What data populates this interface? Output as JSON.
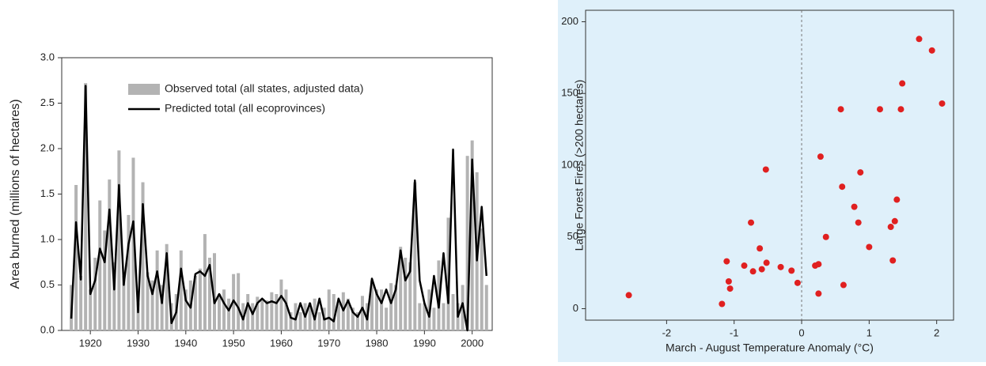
{
  "chart_data": [
    {
      "type": "bar",
      "ylabel": "Area burned (millions of hectares)",
      "x": [
        1916,
        1917,
        1918,
        1919,
        1920,
        1921,
        1922,
        1923,
        1924,
        1925,
        1926,
        1927,
        1928,
        1929,
        1930,
        1931,
        1932,
        1933,
        1934,
        1935,
        1936,
        1937,
        1938,
        1939,
        1940,
        1941,
        1942,
        1943,
        1944,
        1945,
        1946,
        1947,
        1948,
        1949,
        1950,
        1951,
        1952,
        1953,
        1954,
        1955,
        1956,
        1957,
        1958,
        1959,
        1960,
        1961,
        1962,
        1963,
        1964,
        1965,
        1966,
        1967,
        1968,
        1969,
        1970,
        1971,
        1972,
        1973,
        1974,
        1975,
        1976,
        1977,
        1978,
        1979,
        1980,
        1981,
        1982,
        1983,
        1984,
        1985,
        1986,
        1987,
        1988,
        1989,
        1990,
        1991,
        1992,
        1993,
        1994,
        1995,
        1996,
        1997,
        1998,
        1999,
        2000,
        2001,
        2002,
        2003
      ],
      "series": [
        {
          "name": "Observed total (all states, adjusted data)",
          "kind": "bar",
          "color": "#b3b3b3",
          "values": [
            0.5,
            1.6,
            0.6,
            2.72,
            0.45,
            0.8,
            1.43,
            1.1,
            1.66,
            0.75,
            1.98,
            0.6,
            1.27,
            1.9,
            0.3,
            1.63,
            0.64,
            0.55,
            0.88,
            0.5,
            0.95,
            0.3,
            0.4,
            0.88,
            0.45,
            0.55,
            0.6,
            0.68,
            1.06,
            0.8,
            0.85,
            0.4,
            0.45,
            0.35,
            0.62,
            0.63,
            0.3,
            0.4,
            0.3,
            0.37,
            0.35,
            0.33,
            0.42,
            0.4,
            0.56,
            0.45,
            0.2,
            0.3,
            0.2,
            0.3,
            0.3,
            0.35,
            0.2,
            0.25,
            0.45,
            0.4,
            0.3,
            0.42,
            0.35,
            0.25,
            0.2,
            0.38,
            0.3,
            0.55,
            0.45,
            0.45,
            0.25,
            0.52,
            0.5,
            0.92,
            0.8,
            0.75,
            1.63,
            0.3,
            0.3,
            0.45,
            0.25,
            0.77,
            0.3,
            1.24,
            0.4,
            0.3,
            0.5,
            1.92,
            2.09,
            1.74,
            1.12,
            0.5
          ]
        },
        {
          "name": "Predicted total (all ecoprovinces)",
          "kind": "line",
          "color": "#000000",
          "values": [
            0.13,
            1.19,
            0.56,
            2.69,
            0.4,
            0.55,
            0.9,
            0.75,
            1.33,
            0.45,
            1.6,
            0.5,
            0.95,
            1.2,
            0.2,
            1.39,
            0.6,
            0.4,
            0.65,
            0.3,
            0.85,
            0.08,
            0.2,
            0.68,
            0.33,
            0.25,
            0.62,
            0.65,
            0.6,
            0.72,
            0.3,
            0.4,
            0.3,
            0.22,
            0.33,
            0.25,
            0.12,
            0.3,
            0.18,
            0.3,
            0.35,
            0.3,
            0.32,
            0.3,
            0.38,
            0.3,
            0.14,
            0.12,
            0.3,
            0.15,
            0.3,
            0.12,
            0.35,
            0.12,
            0.14,
            0.1,
            0.35,
            0.22,
            0.33,
            0.2,
            0.15,
            0.25,
            0.12,
            0.57,
            0.4,
            0.3,
            0.45,
            0.3,
            0.45,
            0.88,
            0.55,
            0.65,
            1.65,
            0.55,
            0.3,
            0.15,
            0.6,
            0.25,
            0.85,
            0.3,
            1.99,
            0.15,
            0.3,
            0.0,
            1.88,
            0.77,
            1.36,
            0.6
          ]
        }
      ],
      "xlim": [
        1914,
        2004.2
      ],
      "xticks": [
        1920,
        1930,
        1940,
        1950,
        1960,
        1970,
        1980,
        1990,
        2000
      ],
      "ylim": [
        0,
        3
      ],
      "yticks": [
        {
          "value": 0,
          "label": "0.0"
        },
        {
          "value": 0.5,
          "label": "0.5"
        },
        {
          "value": 1,
          "label": "1.0"
        },
        {
          "value": 1.5,
          "label": "1.5"
        },
        {
          "value": 2,
          "label": "2.0"
        },
        {
          "value": 2.5,
          "label": "2.5"
        },
        {
          "value": 3,
          "label": "3.0"
        }
      ],
      "legend": "top"
    },
    {
      "type": "scatter",
      "xlabel": "March - August Temperature Anomaly (°C)",
      "ylabel": "Large Forest Fires (>200 hectares)",
      "color": "#e02020",
      "background": "#dff0fa",
      "vline": 0,
      "x": [
        -2.56,
        -1.18,
        -1.11,
        -1.08,
        -1.06,
        -0.85,
        -0.75,
        -0.72,
        -0.62,
        -0.59,
        -0.53,
        -0.52,
        -0.31,
        -0.15,
        -0.06,
        0.2,
        0.25,
        0.25,
        0.28,
        0.36,
        0.58,
        0.6,
        0.62,
        0.78,
        0.84,
        0.87,
        1.0,
        1.16,
        1.32,
        1.35,
        1.38,
        1.41,
        1.47,
        1.49,
        1.74,
        1.93,
        2.08
      ],
      "values": [
        9.4,
        3.3,
        33,
        19,
        14,
        30,
        60,
        26,
        42,
        27.5,
        97,
        32,
        29,
        26.5,
        18,
        30,
        31,
        10.5,
        106,
        50,
        139,
        85,
        16.5,
        71,
        60,
        95,
        43,
        139,
        57,
        33.6,
        61,
        76,
        139,
        157,
        188,
        180,
        143
      ],
      "xlim": [
        -3.2,
        2.25
      ],
      "xticks": [
        -2,
        -1,
        0,
        1,
        2
      ],
      "ylim": [
        -8,
        208
      ],
      "yticks": [
        0,
        50,
        100,
        150,
        200
      ]
    }
  ]
}
